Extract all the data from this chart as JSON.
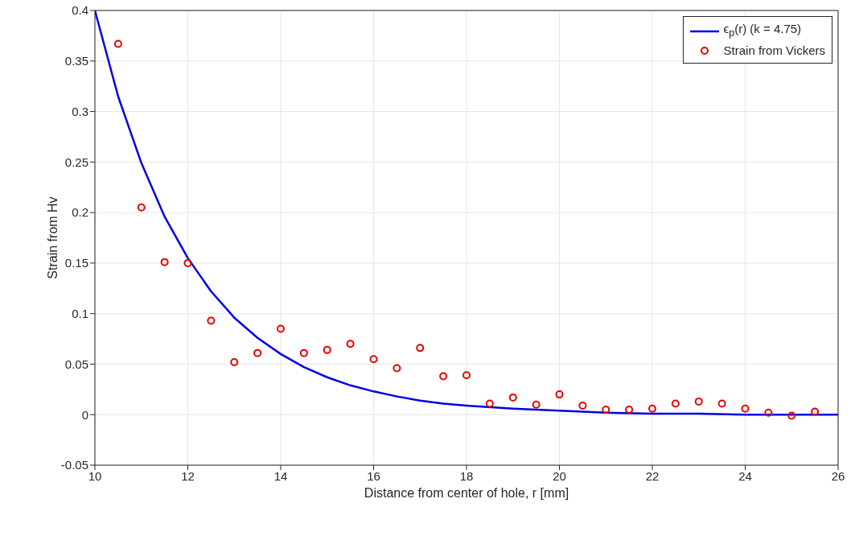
{
  "chart_data": {
    "type": "scatter",
    "xlabel": "Distance from center of hole, r [mm]",
    "ylabel": "Strain from Hv",
    "xlim": [
      10,
      26
    ],
    "xticks": [
      10,
      12,
      14,
      16,
      18,
      20,
      22,
      24,
      26
    ],
    "ylim": [
      -0.05,
      0.4
    ],
    "yticks": [
      -0.05,
      0,
      0.05,
      0.1,
      0.15,
      0.2,
      0.25,
      0.3,
      0.35,
      0.4
    ],
    "grid": true,
    "legend": "top right",
    "series": [
      {
        "name": "ϵ$_{p}$(r) (k = 4.75)",
        "type": "line",
        "color": "#0000e6",
        "marker": "none",
        "line_style": "solid",
        "x": [
          10,
          10.5,
          11,
          11.5,
          12,
          12.5,
          13,
          13.5,
          14,
          14.5,
          15,
          15.5,
          16,
          16.5,
          17,
          17.5,
          18,
          19,
          20,
          21,
          22,
          23,
          24,
          25,
          26
        ],
        "values": [
          0.4,
          0.315,
          0.249,
          0.196,
          0.155,
          0.122,
          0.096,
          0.076,
          0.06,
          0.047,
          0.037,
          0.029,
          0.023,
          0.018,
          0.014,
          0.011,
          0.009,
          0.006,
          0.004,
          0.002,
          0.001,
          0.001,
          0,
          0,
          0
        ]
      },
      {
        "name": "Strain from Vickers",
        "color": "#e60000",
        "marker": "circle",
        "x": [
          10.5,
          11,
          11.5,
          12,
          12.5,
          13,
          13.5,
          14,
          14.5,
          15,
          15.5,
          16,
          16.5,
          17,
          17.5,
          18,
          18.5,
          19,
          19.5,
          20,
          20.5,
          21,
          21.5,
          22,
          22.5,
          23,
          23.5,
          24,
          24.5,
          25,
          25.5
        ],
        "values": [
          0.367,
          0.205,
          0.151,
          0.15,
          0.093,
          0.052,
          0.061,
          0.085,
          0.061,
          0.064,
          0.07,
          0.055,
          0.046,
          0.066,
          0.038,
          0.039,
          0.011,
          0.017,
          0.01,
          0.02,
          0.009,
          0.005,
          0.005,
          0.006,
          0.011,
          0.013,
          0.011,
          0.006,
          0.002,
          -0.001,
          0.003
        ]
      }
    ]
  }
}
